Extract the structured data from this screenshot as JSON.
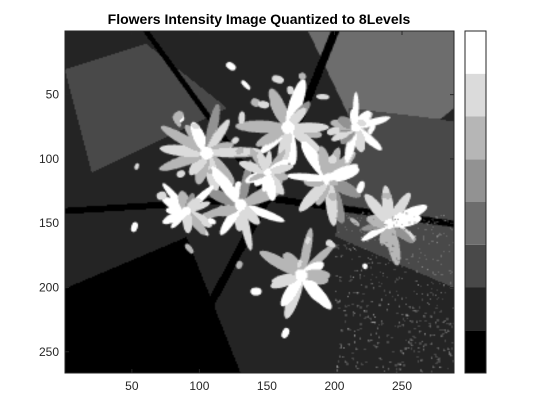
{
  "chart_data": {
    "type": "heatmap",
    "title": "Flowers Intensity Image Quantized to 8Levels",
    "image_size": {
      "width": 288,
      "height": 266
    },
    "xlim": [
      0.5,
      288.5
    ],
    "ylim": [
      0.5,
      266.5
    ],
    "y_direction": "reverse",
    "x_ticks": [
      50,
      100,
      150,
      200,
      250
    ],
    "x_tick_labels": [
      "50",
      "100",
      "150",
      "200",
      "250"
    ],
    "y_ticks": [
      50,
      100,
      150,
      200,
      250
    ],
    "y_tick_labels": [
      "50",
      "100",
      "150",
      "200",
      "250"
    ],
    "grid": false,
    "colormap": "gray",
    "levels": 8,
    "level_colors": [
      "#000000",
      "#242424",
      "#494949",
      "#6d6d6d",
      "#929292",
      "#b6b6b6",
      "#dbdbdb",
      "#ffffff"
    ],
    "colorbar": {
      "position": "right",
      "ticks": [],
      "levels": [
        0,
        1,
        2,
        3,
        4,
        5,
        6,
        7
      ]
    },
    "image_description": "quantized grayscale photograph of a flower cluster on a dark background"
  }
}
